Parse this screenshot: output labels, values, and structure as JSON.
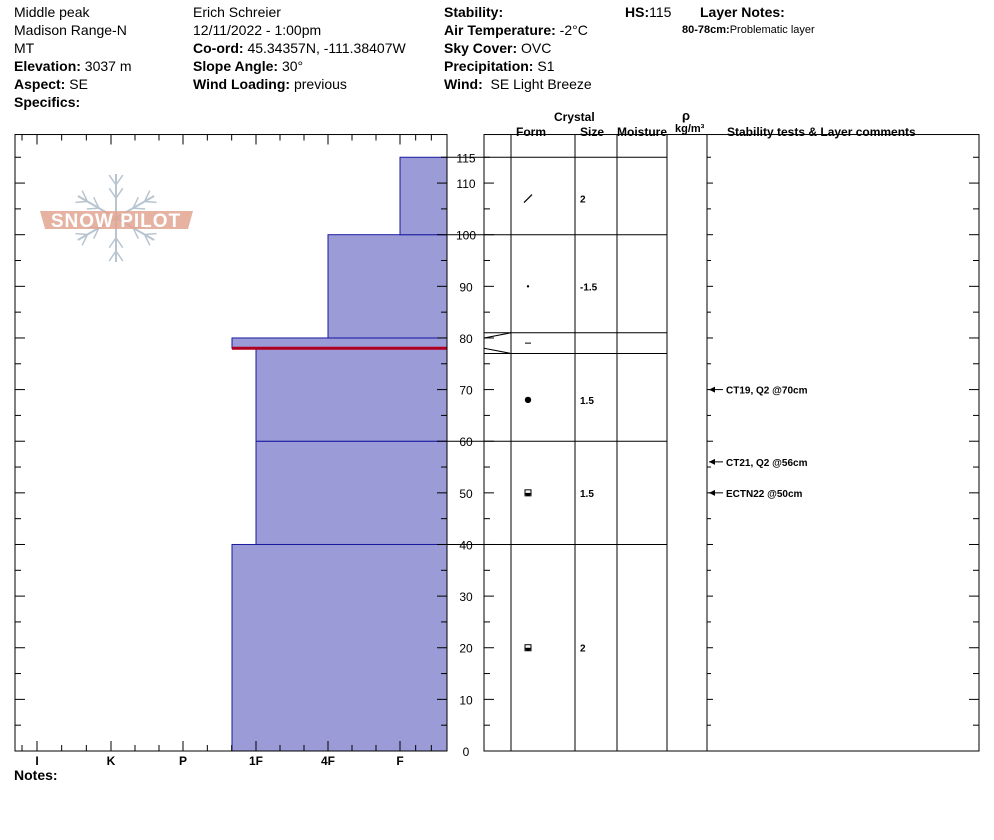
{
  "header": {
    "location": "Middle peak",
    "range": "Madison Range-N",
    "state": "MT",
    "elevation_label": "Elevation:",
    "elevation": "3037 m",
    "aspect_label": "Aspect:",
    "aspect": "SE",
    "specifics_label": "Specifics:",
    "observer": "Erich  Schreier",
    "datetime": "12/11/2022 - 1:00pm",
    "coord_label": "Co-ord:",
    "coord": "45.34357N, -111.38407W",
    "slope_label": "Slope Angle:",
    "slope": "30°",
    "wind_loading_label": "Wind Loading:",
    "wind_loading": "previous",
    "stability_label": "Stability:",
    "air_temp_label": "Air Temperature:",
    "air_temp": "-2°C",
    "sky_label": "Sky Cover:",
    "sky": "OVC",
    "precip_label": "Precipitation:",
    "precip": "S1",
    "wind_label": "Wind:",
    "wind": "SE Light Breeze",
    "hs_label": "HS:",
    "hs": "115",
    "layer_notes_label": "Layer Notes:",
    "layer_note_depth": "80-78cm:",
    "layer_note_text": "Problematic layer"
  },
  "column_headers": {
    "crystal": "Crystal",
    "form": "Form",
    "size": "Size",
    "moisture": "Moisture",
    "rho": "ρ",
    "density_unit": "kg/m³",
    "comments": "Stability tests & Layer comments"
  },
  "notes_label": "Notes:",
  "logo_text": "SNOW PILOT",
  "colors": {
    "hardness_fill": "#9b9bd7",
    "layer_line": "#1a1aa0",
    "problem_layer": "#b00020",
    "logo": "#e2a592",
    "logo_flake": "#b8c4cf"
  },
  "chart_data": {
    "type": "snow-profile",
    "y_label": "",
    "y_unit": "cm",
    "y_range": [
      0,
      115
    ],
    "y_tick_labels": [
      0,
      10,
      20,
      30,
      40,
      50,
      60,
      70,
      80,
      90,
      100,
      110,
      115
    ],
    "hardness_scale": [
      "I",
      "K",
      "P",
      "1F",
      "4F",
      "F"
    ],
    "hardness_layers": [
      {
        "bottom": 0,
        "top": 40,
        "hardness": "1F+"
      },
      {
        "bottom": 40,
        "top": 60,
        "hardness": "1F"
      },
      {
        "bottom": 60,
        "top": 78,
        "hardness": "1F"
      },
      {
        "bottom": 78,
        "top": 80,
        "hardness": "1F+"
      },
      {
        "bottom": 80,
        "top": 100,
        "hardness": "4F"
      },
      {
        "bottom": 100,
        "top": 115,
        "hardness": "F"
      }
    ],
    "problem_layer_depth": 78,
    "strat_boundaries": [
      0,
      40,
      60,
      77,
      81,
      100,
      115
    ],
    "crystal_layers": [
      {
        "depth": 107,
        "form": "decomposing",
        "size": "2"
      },
      {
        "depth": 90,
        "form": "precip-particle",
        "size": "-1.5"
      },
      {
        "depth": 79,
        "form": "surface-hoar",
        "size": ""
      },
      {
        "depth": 68,
        "form": "rounded",
        "size": "1.5"
      },
      {
        "depth": 50,
        "form": "mixed-rounded-faceted",
        "size": "1.5"
      },
      {
        "depth": 20,
        "form": "mixed-rounded-faceted",
        "size": "2"
      }
    ],
    "stability_tests": [
      {
        "depth": 70,
        "text": "CT19, Q2 @70cm"
      },
      {
        "depth": 56,
        "text": "CT21, Q2 @56cm"
      },
      {
        "depth": 50,
        "text": "ECTN22 @50cm"
      }
    ]
  }
}
